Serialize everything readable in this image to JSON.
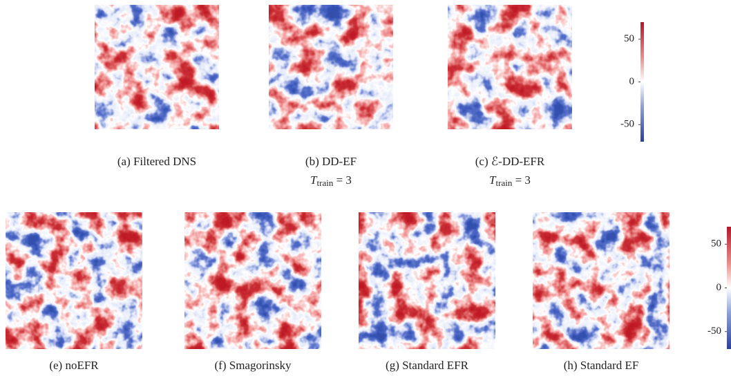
{
  "panels": [
    {
      "label": "(a) Filtered DNS"
    },
    {
      "label": "(b) DD-EF",
      "sublabel": {
        "symbol": "T",
        "subscript": "train",
        "rest": " = 3"
      }
    },
    {
      "label": "(c) ℰ-DD-EFR",
      "sublabel": {
        "symbol": "T",
        "subscript": "train",
        "rest": " = 3"
      }
    },
    {
      "label": "(e) noEFR"
    },
    {
      "label": "(f) Smagorinsky"
    },
    {
      "label": "(g) Standard EFR"
    },
    {
      "label": "(h) Standard EF"
    }
  ],
  "colorbars": [
    {
      "lim": [
        -70,
        70
      ],
      "ticks": [
        50,
        0,
        -50
      ]
    },
    {
      "lim": [
        -70,
        70
      ],
      "ticks": [
        50,
        0,
        -50
      ]
    }
  ]
}
